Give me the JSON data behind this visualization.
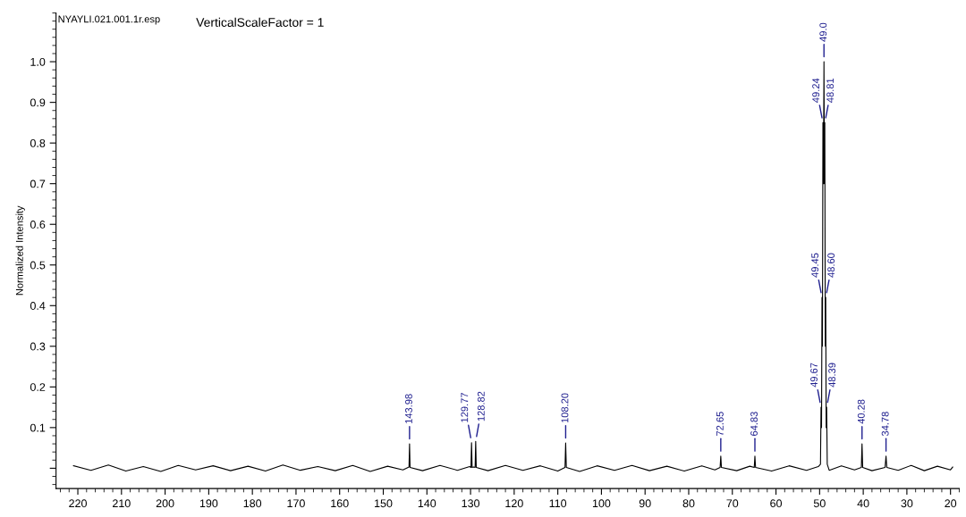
{
  "chart_data": {
    "type": "line",
    "title": "NYAYLI.021.001.1r.esp",
    "subtitle": "VerticalScaleFactor = 1",
    "ylabel": "Normalized Intensity",
    "x": [
      221,
      217,
      213,
      209,
      205,
      201,
      197,
      193,
      189,
      185,
      181,
      177,
      173,
      169,
      165,
      161,
      157,
      153,
      149,
      145.5,
      144.1,
      143.98,
      143.86,
      141,
      137,
      133,
      130.2,
      129.9,
      129.77,
      129.64,
      129.3,
      128.95,
      128.82,
      128.69,
      126,
      122,
      118,
      114,
      110,
      108.35,
      108.2,
      108.05,
      105,
      101,
      97,
      93,
      89,
      85,
      81,
      77,
      74,
      72.8,
      72.65,
      72.5,
      69,
      66,
      64.98,
      64.83,
      64.68,
      61,
      57,
      53,
      50.3,
      49.8,
      49.67,
      49.56,
      49.45,
      49.35,
      49.24,
      49.12,
      49.0,
      48.9,
      48.81,
      48.7,
      48.6,
      48.5,
      48.39,
      48.25,
      47.8,
      45,
      42,
      40.43,
      40.28,
      40.13,
      38,
      35.0,
      34.78,
      34.6,
      32,
      29,
      26,
      23,
      20,
      19.5
    ],
    "series": [
      {
        "color": "#000000",
        "values": [
          0.006,
          -0.005,
          0.008,
          -0.007,
          0.004,
          -0.008,
          0.007,
          -0.004,
          0.006,
          -0.006,
          0.005,
          -0.007,
          0.008,
          -0.005,
          0.004,
          -0.006,
          0.007,
          -0.008,
          0.005,
          -0.004,
          0.003,
          0.06,
          0.002,
          -0.006,
          0.007,
          -0.005,
          0.004,
          0.002,
          0.063,
          0.002,
          0.003,
          0.002,
          0.066,
          0.002,
          -0.006,
          0.007,
          -0.005,
          0.006,
          -0.007,
          0.002,
          0.062,
          0.002,
          -0.008,
          0.006,
          -0.005,
          0.007,
          -0.006,
          0.005,
          -0.007,
          0.006,
          -0.004,
          0.002,
          0.03,
          0.002,
          -0.006,
          0.005,
          0.002,
          0.03,
          0.002,
          -0.007,
          0.006,
          -0.005,
          0.004,
          0.01,
          0.15,
          0.1,
          0.42,
          0.3,
          0.85,
          0.7,
          1.0,
          0.7,
          0.85,
          0.3,
          0.42,
          0.1,
          0.15,
          0.01,
          -0.005,
          0.006,
          -0.004,
          0.002,
          0.06,
          0.002,
          -0.006,
          0.002,
          0.03,
          0.002,
          -0.005,
          0.007,
          -0.006,
          0.005,
          -0.004,
          0.003
        ]
      }
    ],
    "xlim": [
      225,
      18
    ],
    "ylim": [
      -0.05,
      1.12
    ],
    "xticks": [
      220,
      210,
      200,
      190,
      180,
      170,
      160,
      150,
      140,
      130,
      120,
      110,
      100,
      90,
      80,
      70,
      60,
      50,
      40,
      30,
      20
    ],
    "yticks": [
      {
        "value": 0,
        "label": null
      },
      0.1,
      0.2,
      0.3,
      0.4,
      0.5,
      0.6,
      0.7,
      0.8,
      0.9,
      {
        "value": 1,
        "label": "1.0"
      }
    ],
    "annotations": [
      {
        "text": "143.98",
        "x": 143.98,
        "y": 0.06
      },
      {
        "text": "129.77",
        "x": 129.77,
        "y": 0.063
      },
      {
        "text": "128.82",
        "x": 128.82,
        "y": 0.066
      },
      {
        "text": "108.20",
        "x": 108.2,
        "y": 0.062
      },
      {
        "text": "72.65",
        "x": 72.65,
        "y": 0.03
      },
      {
        "text": "64.83",
        "x": 64.83,
        "y": 0.03
      },
      {
        "text": "49.67",
        "x": 49.67,
        "y": 0.15
      },
      {
        "text": "49.45",
        "x": 49.45,
        "y": 0.42
      },
      {
        "text": "49.24",
        "x": 49.24,
        "y": 0.85
      },
      {
        "text": "49.0",
        "x": 49.0,
        "y": 1.0
      },
      {
        "text": "48.81",
        "x": 48.81,
        "y": 0.85
      },
      {
        "text": "48.60",
        "x": 48.6,
        "y": 0.42
      },
      {
        "text": "48.39",
        "x": 48.39,
        "y": 0.15
      },
      {
        "text": "40.28",
        "x": 40.28,
        "y": 0.06
      },
      {
        "text": "34.78",
        "x": 34.78,
        "y": 0.03
      }
    ]
  }
}
